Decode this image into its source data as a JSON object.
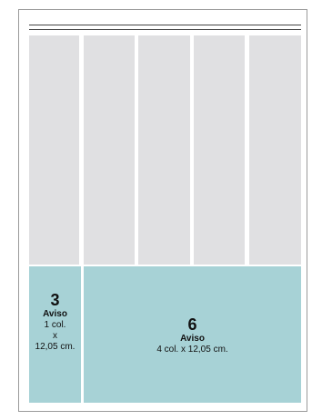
{
  "colors": {
    "page_background": "#ffffff",
    "column": "#e0e0e2",
    "ad_fill": "#a7d2d6",
    "rule": "#444444",
    "frame": "#9a9a9a"
  },
  "layout": {
    "columns": 5
  },
  "ads": [
    {
      "number": "3",
      "label": "Aviso",
      "detail_lines": [
        "1 col.",
        "x",
        "12,05 cm."
      ]
    },
    {
      "number": "6",
      "label": "Aviso",
      "detail": "4 col. x 12,05 cm."
    }
  ]
}
